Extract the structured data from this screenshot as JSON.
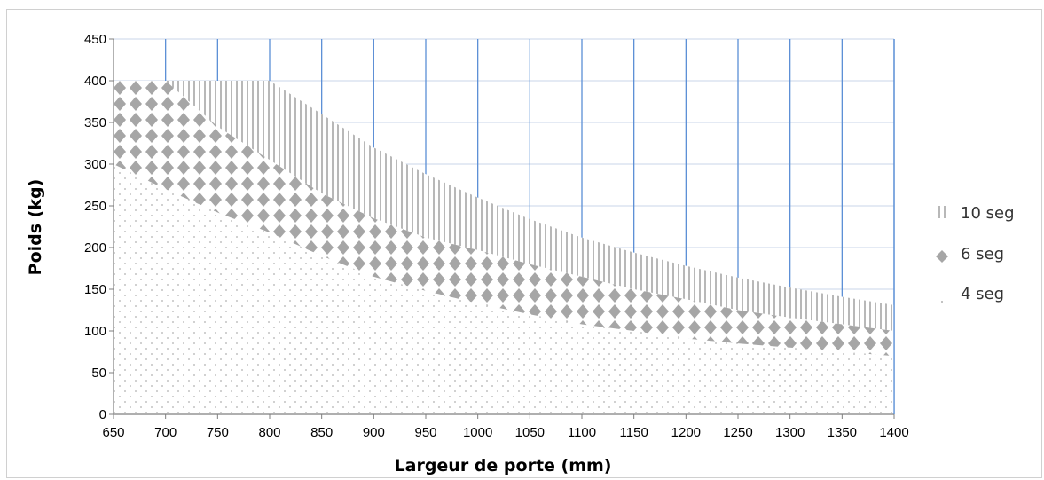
{
  "chart_data": {
    "type": "area",
    "xlabel": "Largeur de porte (mm)",
    "ylabel": "Poids (kg)",
    "xlim": [
      650,
      1400
    ],
    "ylim": [
      0,
      450
    ],
    "x_ticks": [
      "650",
      "700",
      "750",
      "800",
      "850",
      "900",
      "950",
      "1000",
      "1050",
      "1100",
      "1150",
      "1200",
      "1250",
      "1300",
      "1350",
      "1400"
    ],
    "y_ticks": [
      "0",
      "50",
      "100",
      "150",
      "200",
      "250",
      "300",
      "350",
      "400",
      "450"
    ],
    "grid": true,
    "legend_position": "right",
    "colors": {
      "grid": "#5b8fd6",
      "hgrid": "#c8d6ea",
      "fill": "#a6a6a6",
      "axis": "#7f7f7f"
    },
    "x": [
      650,
      700,
      750,
      800,
      850,
      900,
      950,
      1000,
      1050,
      1100,
      1150,
      1200,
      1250,
      1300,
      1350,
      1400
    ],
    "series": [
      {
        "name": "10 seg",
        "pattern": "vertical-lines",
        "values": [
          400,
          400,
          400,
          400,
          360,
          320,
          288,
          260,
          234,
          212,
          194,
          178,
          164,
          152,
          141,
          131
        ]
      },
      {
        "name": "6 seg",
        "pattern": "diamonds",
        "values": [
          400,
          400,
          345,
          305,
          265,
          235,
          212,
          197,
          180,
          165,
          150,
          138,
          125,
          116,
          108,
          100
        ]
      },
      {
        "name": "4 seg",
        "pattern": "dots",
        "values": [
          300,
          270,
          242,
          218,
          190,
          165,
          148,
          133,
          120,
          108,
          100,
          91,
          85,
          80,
          75,
          70
        ]
      }
    ]
  }
}
